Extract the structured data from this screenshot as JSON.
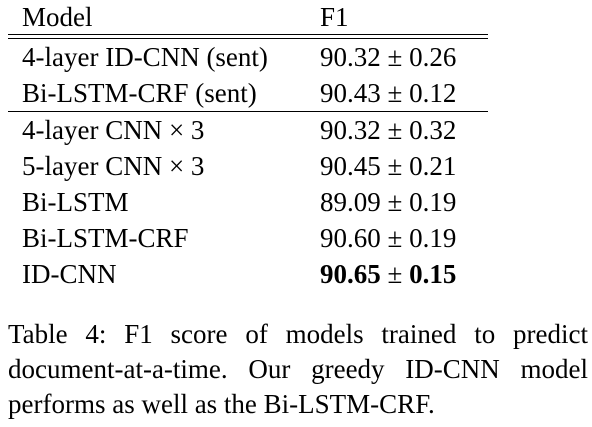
{
  "table": {
    "headers": {
      "model": "Model",
      "f1": "F1"
    },
    "group1": [
      {
        "model": "4-layer ID-CNN (sent)",
        "f1": "90.32 ± 0.26"
      },
      {
        "model": "Bi-LSTM-CRF (sent)",
        "f1": "90.43 ± 0.12"
      }
    ],
    "group2": [
      {
        "model": "4-layer CNN × 3",
        "f1": "90.32 ± 0.32"
      },
      {
        "model": "5-layer CNN × 3",
        "f1": "90.45 ± 0.21"
      },
      {
        "model": "Bi-LSTM",
        "f1": "89.09 ± 0.19"
      },
      {
        "model": "Bi-LSTM-CRF",
        "f1": "90.60 ± 0.19"
      },
      {
        "model": "ID-CNN",
        "f1_value": "90.65",
        "f1_pm": " ± ",
        "f1_err": "0.15"
      }
    ]
  },
  "caption": {
    "line1": "Table 4: F1 score of models trained to predict",
    "line2": "document-at-a-time. Our greedy ID-CNN model",
    "line3": "performs as well as the Bi-LSTM-CRF."
  }
}
